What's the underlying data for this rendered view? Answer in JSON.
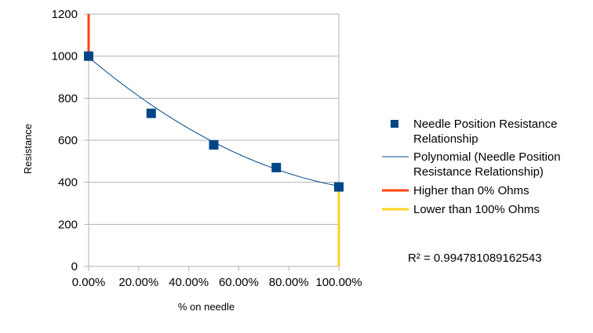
{
  "chart_data": {
    "type": "scatter",
    "title": "",
    "xlabel": "% on needle",
    "ylabel": "Resistance",
    "xlim": [
      0,
      1
    ],
    "ylim": [
      0,
      1200
    ],
    "x_ticks": [
      0,
      0.2,
      0.4,
      0.6,
      0.8,
      1.0
    ],
    "x_tick_labels": [
      "0.00%",
      "20.00%",
      "40.00%",
      "60.00%",
      "80.00%",
      "100.00%"
    ],
    "y_ticks": [
      0,
      200,
      400,
      600,
      800,
      1000,
      1200
    ],
    "y_tick_labels": [
      "0",
      "200",
      "400",
      "600",
      "800",
      "1000",
      "1200"
    ],
    "grid": "horizontal",
    "legend_position": "right",
    "series": [
      {
        "name": "Needle Position Resistance Relationship",
        "kind": "markers",
        "marker": "square",
        "color": "#004586",
        "x": [
          0,
          0.25,
          0.5,
          0.75,
          1.0
        ],
        "y": [
          1000,
          728,
          578,
          470,
          378
        ]
      },
      {
        "name": "Polynomial (Needle Position Resistance Relationship)",
        "kind": "trendline",
        "color": "#004586",
        "coefficients": [
          995,
          -1003,
          390
        ]
      },
      {
        "name": "Higher than 0% Ohms",
        "kind": "line",
        "color": "#ff420e",
        "x": [
          0,
          0
        ],
        "y": [
          1000,
          1200
        ]
      },
      {
        "name": "Lower than 100% Ohms",
        "kind": "line",
        "color": "#ffd320",
        "x": [
          1.0,
          1.0
        ],
        "y": [
          0,
          378
        ]
      }
    ],
    "legend": [
      {
        "lines": [
          "Needle Position Resistance",
          "Relationship"
        ]
      },
      {
        "lines": [
          "Polynomial (Needle Position",
          "Resistance Relationship)"
        ]
      },
      {
        "lines": [
          "Higher than 0% Ohms"
        ]
      },
      {
        "lines": [
          "Lower than 100% Ohms"
        ]
      }
    ],
    "annotation": "R² = 0.994781089162543"
  }
}
